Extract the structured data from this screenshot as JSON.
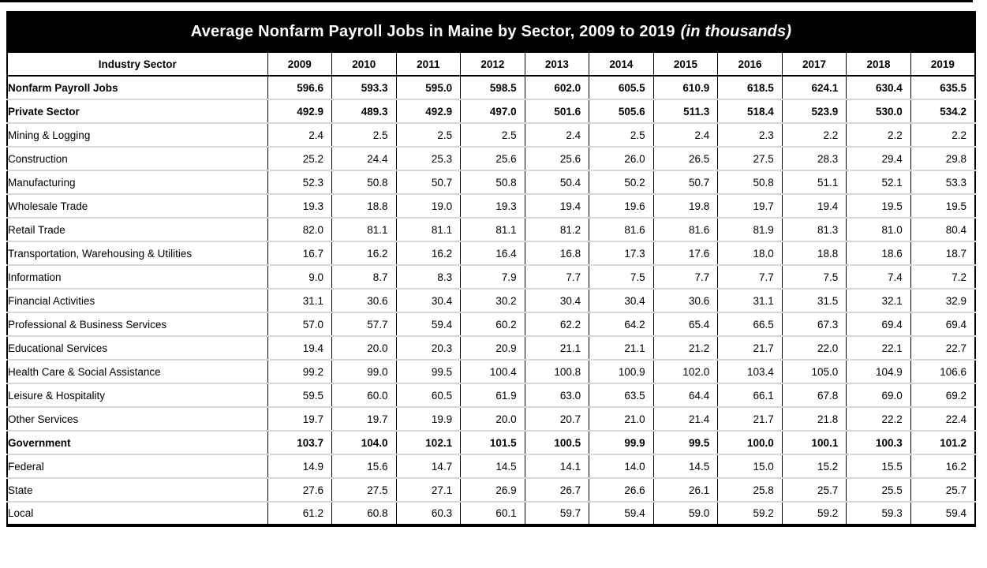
{
  "title": {
    "main": "Average Nonfarm Payroll Jobs in Maine by Sector, 2009 to 2019",
    "suffix": "(in thousands)"
  },
  "colors": {
    "title_bar_bg": "#000000",
    "title_text": "#ffffff",
    "grid_line": "#000000",
    "row_separator": "#d9d9d9"
  },
  "chart_data": {
    "type": "table",
    "title": "Average Nonfarm Payroll Jobs in Maine by Sector, 2009 to 2019 (in thousands)",
    "columns": [
      "Industry Sector",
      "2009",
      "2010",
      "2011",
      "2012",
      "2013",
      "2014",
      "2015",
      "2016",
      "2017",
      "2018",
      "2019"
    ],
    "rows": [
      {
        "label": "Nonfarm Payroll Jobs",
        "indent": 0,
        "bold": true,
        "values": [
          "596.6",
          "593.3",
          "595.0",
          "598.5",
          "602.0",
          "605.5",
          "610.9",
          "618.5",
          "624.1",
          "630.4",
          "635.5"
        ]
      },
      {
        "label": "Private Sector",
        "indent": 1,
        "bold": true,
        "values": [
          "492.9",
          "489.3",
          "492.9",
          "497.0",
          "501.6",
          "505.6",
          "511.3",
          "518.4",
          "523.9",
          "530.0",
          "534.2"
        ]
      },
      {
        "label": "Mining & Logging",
        "indent": 2,
        "bold": false,
        "values": [
          "2.4",
          "2.5",
          "2.5",
          "2.5",
          "2.4",
          "2.5",
          "2.4",
          "2.3",
          "2.2",
          "2.2",
          "2.2"
        ]
      },
      {
        "label": "Construction",
        "indent": 2,
        "bold": false,
        "values": [
          "25.2",
          "24.4",
          "25.3",
          "25.6",
          "25.6",
          "26.0",
          "26.5",
          "27.5",
          "28.3",
          "29.4",
          "29.8"
        ]
      },
      {
        "label": "Manufacturing",
        "indent": 2,
        "bold": false,
        "values": [
          "52.3",
          "50.8",
          "50.7",
          "50.8",
          "50.4",
          "50.2",
          "50.7",
          "50.8",
          "51.1",
          "52.1",
          "53.3"
        ]
      },
      {
        "label": "Wholesale Trade",
        "indent": 2,
        "bold": false,
        "values": [
          "19.3",
          "18.8",
          "19.0",
          "19.3",
          "19.4",
          "19.6",
          "19.8",
          "19.7",
          "19.4",
          "19.5",
          "19.5"
        ]
      },
      {
        "label": "Retail Trade",
        "indent": 2,
        "bold": false,
        "values": [
          "82.0",
          "81.1",
          "81.1",
          "81.1",
          "81.2",
          "81.6",
          "81.6",
          "81.9",
          "81.3",
          "81.0",
          "80.4"
        ]
      },
      {
        "label": "Transportation, Warehousing & Utilities",
        "indent": 2,
        "bold": false,
        "values": [
          "16.7",
          "16.2",
          "16.2",
          "16.4",
          "16.8",
          "17.3",
          "17.6",
          "18.0",
          "18.8",
          "18.6",
          "18.7"
        ]
      },
      {
        "label": "Information",
        "indent": 2,
        "bold": false,
        "values": [
          "9.0",
          "8.7",
          "8.3",
          "7.9",
          "7.7",
          "7.5",
          "7.7",
          "7.7",
          "7.5",
          "7.4",
          "7.2"
        ]
      },
      {
        "label": "Financial Activities",
        "indent": 2,
        "bold": false,
        "values": [
          "31.1",
          "30.6",
          "30.4",
          "30.2",
          "30.4",
          "30.4",
          "30.6",
          "31.1",
          "31.5",
          "32.1",
          "32.9"
        ]
      },
      {
        "label": "Professional & Business Services",
        "indent": 2,
        "bold": false,
        "values": [
          "57.0",
          "57.7",
          "59.4",
          "60.2",
          "62.2",
          "64.2",
          "65.4",
          "66.5",
          "67.3",
          "69.4",
          "69.4"
        ]
      },
      {
        "label": "Educational Services",
        "indent": 2,
        "bold": false,
        "values": [
          "19.4",
          "20.0",
          "20.3",
          "20.9",
          "21.1",
          "21.1",
          "21.2",
          "21.7",
          "22.0",
          "22.1",
          "22.7"
        ]
      },
      {
        "label": "Health Care & Social Assistance",
        "indent": 2,
        "bold": false,
        "values": [
          "99.2",
          "99.0",
          "99.5",
          "100.4",
          "100.8",
          "100.9",
          "102.0",
          "103.4",
          "105.0",
          "104.9",
          "106.6"
        ]
      },
      {
        "label": "Leisure & Hospitality",
        "indent": 2,
        "bold": false,
        "values": [
          "59.5",
          "60.0",
          "60.5",
          "61.9",
          "63.0",
          "63.5",
          "64.4",
          "66.1",
          "67.8",
          "69.0",
          "69.2"
        ]
      },
      {
        "label": "Other Services",
        "indent": 2,
        "bold": false,
        "values": [
          "19.7",
          "19.7",
          "19.9",
          "20.0",
          "20.7",
          "21.0",
          "21.4",
          "21.7",
          "21.8",
          "22.2",
          "22.4"
        ]
      },
      {
        "label": "Government",
        "indent": 1,
        "bold": true,
        "values": [
          "103.7",
          "104.0",
          "102.1",
          "101.5",
          "100.5",
          "99.9",
          "99.5",
          "100.0",
          "100.1",
          "100.3",
          "101.2"
        ]
      },
      {
        "label": "Federal",
        "indent": 2,
        "bold": false,
        "values": [
          "14.9",
          "15.6",
          "14.7",
          "14.5",
          "14.1",
          "14.0",
          "14.5",
          "15.0",
          "15.2",
          "15.5",
          "16.2"
        ]
      },
      {
        "label": "State",
        "indent": 2,
        "bold": false,
        "values": [
          "27.6",
          "27.5",
          "27.1",
          "26.9",
          "26.7",
          "26.6",
          "26.1",
          "25.8",
          "25.7",
          "25.5",
          "25.7"
        ]
      },
      {
        "label": "Local",
        "indent": 2,
        "bold": false,
        "values": [
          "61.2",
          "60.8",
          "60.3",
          "60.1",
          "59.7",
          "59.4",
          "59.0",
          "59.2",
          "59.2",
          "59.3",
          "59.4"
        ]
      }
    ]
  }
}
